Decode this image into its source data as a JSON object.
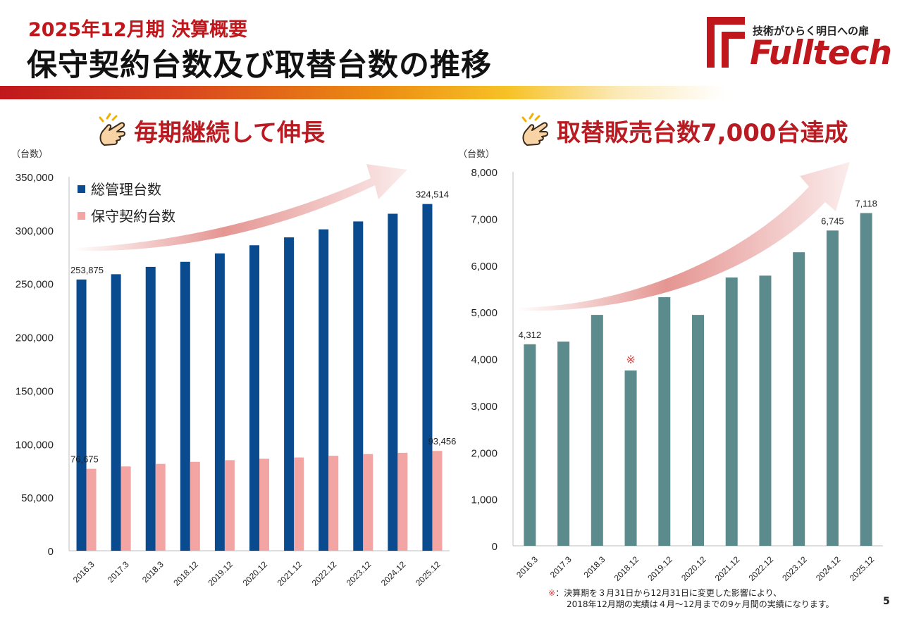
{
  "header": {
    "subtitle": "2025年12月期 決算概要",
    "title": "保守契約台数及び取替台数の推移"
  },
  "logo": {
    "tagline": "技術がひらく明日への扉",
    "wordmark": "Fulltech"
  },
  "colors": {
    "brand_red": "#c0171c",
    "series_total": "#0a4a8f",
    "series_contract": "#f2a5a3",
    "series_replace": "#5b8b8d",
    "arrow": "#e0837f"
  },
  "left_panel": {
    "headline": "毎期継続して伸長",
    "unit_label": "（台数）",
    "icon": "pointing-hand-icon"
  },
  "right_panel": {
    "headline": "取替販売台数7,000台達成",
    "unit_label": "（台数）",
    "icon": "pointing-hand-icon",
    "asterisk": "※"
  },
  "chart_data": [
    {
      "type": "bar",
      "title": "",
      "ylabel": "（台数）",
      "ylim": [
        0,
        350000
      ],
      "yticks": [
        0,
        50000,
        100000,
        150000,
        200000,
        250000,
        300000,
        350000
      ],
      "ytick_labels": [
        "0",
        "50,000",
        "100,000",
        "150,000",
        "200,000",
        "250,000",
        "300,000",
        "350,000"
      ],
      "categories": [
        "2016.3",
        "2017.3",
        "2018.3",
        "2018.12",
        "2019.12",
        "2020.12",
        "2021.12",
        "2022.12",
        "2023.12",
        "2024.12",
        "2025.12"
      ],
      "legend_position": "top-left",
      "series": [
        {
          "name": "総管理台数",
          "values": [
            253875,
            258800,
            265700,
            270400,
            278300,
            285900,
            293300,
            300800,
            308200,
            315400,
            324514
          ],
          "labels": {
            "0": "253,875",
            "10": "324,514"
          }
        },
        {
          "name": "保守契約台数",
          "values": [
            76675,
            78900,
            81300,
            83200,
            84800,
            86100,
            87300,
            88900,
            90500,
            91700,
            93456
          ],
          "labels": {
            "0": "76,675",
            "10": "93,456"
          }
        }
      ]
    },
    {
      "type": "bar",
      "title": "",
      "ylabel": "（台数）",
      "ylim": [
        0,
        8000
      ],
      "yticks": [
        0,
        1000,
        2000,
        3000,
        4000,
        5000,
        6000,
        7000,
        8000
      ],
      "ytick_labels": [
        "0",
        "1,000",
        "2,000",
        "3,000",
        "4,000",
        "5,000",
        "6,000",
        "7,000",
        "8,000"
      ],
      "categories": [
        "2016.3",
        "2017.3",
        "2018.3",
        "2018.12",
        "2019.12",
        "2020.12",
        "2021.12",
        "2022.12",
        "2023.12",
        "2024.12",
        "2025.12"
      ],
      "series": [
        {
          "name": "取替販売台数",
          "values": [
            4312,
            4370,
            4940,
            3750,
            5320,
            4940,
            5740,
            5780,
            6280,
            6745,
            7118
          ],
          "labels": {
            "0": "4,312",
            "9": "6,745",
            "10": "7,118"
          }
        }
      ]
    }
  ],
  "footnote": {
    "mark": "※",
    "line1": "：決算期を３月31日から12月31日に変更した影響により、",
    "line2": "2018年12月期の実績は４月～12月までの9ヶ月間の実績になります。"
  },
  "page_number": "5"
}
